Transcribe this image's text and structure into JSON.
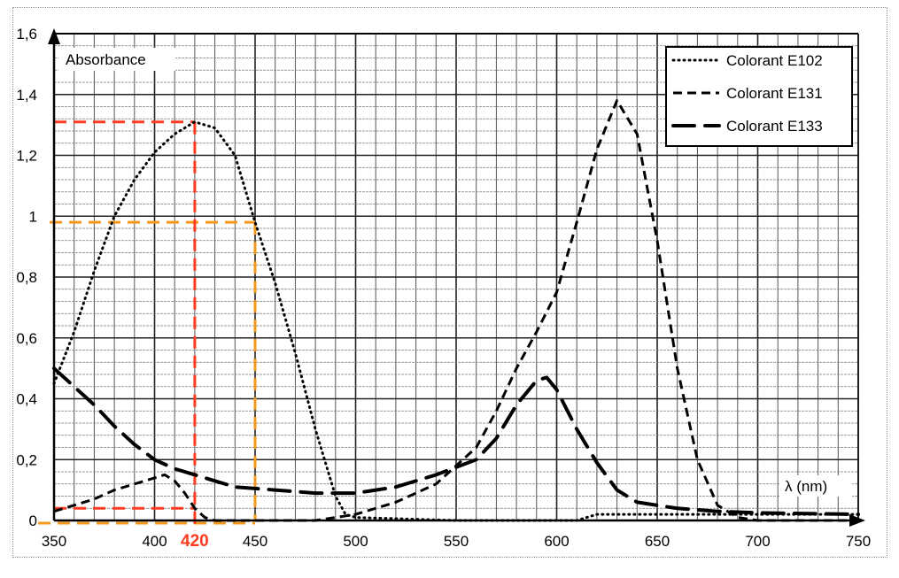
{
  "chart_data": {
    "type": "line",
    "title": "",
    "xlabel": "λ (nm)",
    "ylabel": "Absorbance",
    "xlim": [
      350,
      750
    ],
    "ylim": [
      0,
      1.6
    ],
    "grid": true,
    "legend_position": "top-right",
    "x_ticks": [
      "350",
      "400",
      "450",
      "500",
      "550",
      "600",
      "650",
      "700",
      "750"
    ],
    "x_tick_values": [
      350,
      400,
      450,
      500,
      550,
      600,
      650,
      700,
      750
    ],
    "y_ticks": [
      "0",
      "0,2",
      "0,4",
      "0,6",
      "0,8",
      "1",
      "1,2",
      "1,4",
      "1,6"
    ],
    "y_tick_values": [
      0,
      0.2,
      0.4,
      0.6,
      0.8,
      1.0,
      1.2,
      1.4,
      1.6
    ],
    "series": [
      {
        "name": "Colorant E102",
        "style": "dotted",
        "x": [
          350,
          360,
          370,
          380,
          390,
          400,
          410,
          420,
          430,
          440,
          450,
          460,
          470,
          480,
          490,
          495,
          500,
          550,
          610,
          620,
          650,
          700,
          750
        ],
        "y": [
          0.45,
          0.62,
          0.82,
          1.0,
          1.12,
          1.21,
          1.27,
          1.31,
          1.29,
          1.2,
          0.98,
          0.78,
          0.55,
          0.3,
          0.08,
          0.02,
          0.01,
          0.0,
          0.0,
          0.02,
          0.02,
          0.02,
          0.02
        ]
      },
      {
        "name": "Colorant E131",
        "style": "dashed",
        "x": [
          350,
          360,
          370,
          380,
          390,
          400,
          405,
          410,
          415,
          420,
          425,
          430,
          450,
          480,
          490,
          500,
          520,
          540,
          560,
          570,
          580,
          590,
          600,
          610,
          620,
          630,
          640,
          650,
          660,
          670,
          680,
          690,
          700,
          750
        ],
        "y": [
          0.03,
          0.05,
          0.07,
          0.1,
          0.12,
          0.14,
          0.15,
          0.13,
          0.09,
          0.04,
          0.01,
          0.0,
          0.0,
          0.0,
          0.01,
          0.02,
          0.06,
          0.12,
          0.24,
          0.36,
          0.5,
          0.62,
          0.75,
          0.98,
          1.22,
          1.38,
          1.27,
          0.92,
          0.5,
          0.2,
          0.05,
          0.01,
          0.0,
          0.0
        ]
      },
      {
        "name": "Colorant E133",
        "style": "long-dash",
        "x": [
          350,
          360,
          370,
          380,
          390,
          400,
          410,
          420,
          430,
          440,
          460,
          480,
          500,
          520,
          540,
          560,
          570,
          580,
          590,
          595,
          600,
          610,
          620,
          630,
          640,
          660,
          680,
          700,
          750
        ],
        "y": [
          0.5,
          0.44,
          0.38,
          0.31,
          0.25,
          0.2,
          0.17,
          0.15,
          0.13,
          0.11,
          0.1,
          0.09,
          0.09,
          0.11,
          0.15,
          0.2,
          0.27,
          0.38,
          0.46,
          0.47,
          0.43,
          0.3,
          0.19,
          0.1,
          0.06,
          0.04,
          0.03,
          0.025,
          0.02
        ]
      }
    ],
    "annotations": [
      {
        "label": "420",
        "color": "#ff3b1f",
        "x": 420,
        "y_values": [
          1.31,
          0.04
        ]
      },
      {
        "color": "#f39a1e",
        "x": 450,
        "y_values": [
          0.98,
          0
        ]
      }
    ]
  }
}
